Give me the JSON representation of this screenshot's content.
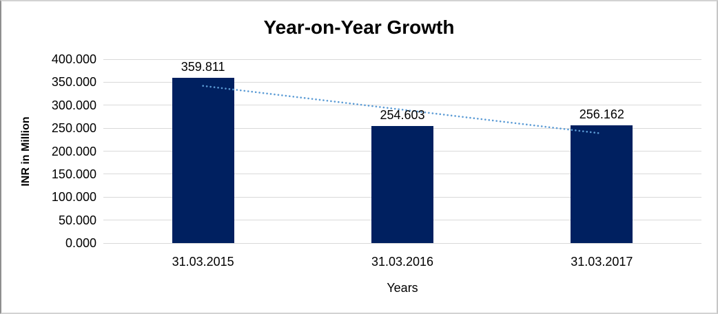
{
  "chart_data": {
    "type": "bar",
    "title": "Year-on-Year Growth",
    "xlabel": "Years",
    "ylabel": "INR in Million",
    "categories": [
      "31.03.2015",
      "31.03.2016",
      "31.03.2017"
    ],
    "values": [
      359.811,
      254.603,
      256.162
    ],
    "value_labels": [
      "359.811",
      "254.603",
      "256.162"
    ],
    "y_ticks": {
      "labels": [
        "400.000",
        "350.000",
        "300.000",
        "250.000",
        "200.000",
        "150.000",
        "100.000",
        "50.000",
        "0.000"
      ],
      "values": [
        400,
        350,
        300,
        250,
        200,
        150,
        100,
        50,
        0
      ]
    },
    "ylim": [
      0,
      400
    ],
    "grid": true,
    "legend": "none",
    "bar_color": "#002060",
    "gridline_color": "#d9d9d9",
    "text_color": "#000000",
    "trendline": {
      "type": "linear",
      "style": "dotted",
      "color": "#5b9bd5",
      "fitted_endpoints": [
        342.0,
        238.4
      ]
    }
  }
}
